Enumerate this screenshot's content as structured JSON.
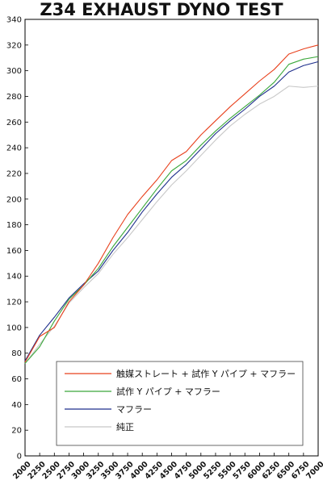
{
  "chart_data": {
    "type": "line",
    "title": "Z34 EXHAUST DYNO TEST",
    "xlabel": "",
    "ylabel": "",
    "xlim": [
      2000,
      7000
    ],
    "ylim": [
      0,
      340
    ],
    "y_ticks": [
      0,
      20,
      40,
      60,
      80,
      100,
      120,
      140,
      160,
      180,
      200,
      220,
      240,
      260,
      280,
      300,
      320,
      340
    ],
    "x_ticks": [
      2000,
      2250,
      2500,
      2750,
      3000,
      3250,
      3500,
      3750,
      4000,
      4250,
      4500,
      4750,
      5000,
      5250,
      5500,
      5750,
      6000,
      6250,
      6500,
      6750,
      7000
    ],
    "grid": false,
    "legend_position": "bottom-right",
    "x": [
      2000,
      2250,
      2500,
      2750,
      3000,
      3250,
      3500,
      3750,
      4000,
      4250,
      4500,
      4750,
      5000,
      5250,
      5500,
      5750,
      6000,
      6250,
      6500,
      6750,
      7000
    ],
    "series": [
      {
        "name": "触媒ストレート + 試作 Y パイプ + マフラー",
        "color": "#e8401c",
        "values": [
          73,
          93,
          100,
          120,
          133,
          150,
          170,
          188,
          202,
          215,
          230,
          237,
          250,
          261,
          272,
          282,
          292,
          301,
          313,
          317,
          320
        ]
      },
      {
        "name": "試作 Y パイプ + マフラー",
        "color": "#3aa83a",
        "values": [
          72,
          85,
          105,
          122,
          133,
          146,
          163,
          178,
          193,
          208,
          222,
          230,
          242,
          253,
          263,
          272,
          281,
          291,
          305,
          309,
          311
        ]
      },
      {
        "name": "マフラー",
        "color": "#1f2f8c",
        "values": [
          74,
          94,
          108,
          123,
          134,
          144,
          160,
          174,
          190,
          204,
          217,
          227,
          239,
          251,
          261,
          270,
          280,
          288,
          299,
          304,
          307
        ]
      },
      {
        "name": "純正",
        "color": "#c8c8c8",
        "values": [
          72,
          87,
          101,
          119,
          131,
          142,
          157,
          170,
          184,
          198,
          211,
          222,
          234,
          246,
          257,
          266,
          274,
          280,
          288,
          287,
          288
        ]
      }
    ]
  }
}
